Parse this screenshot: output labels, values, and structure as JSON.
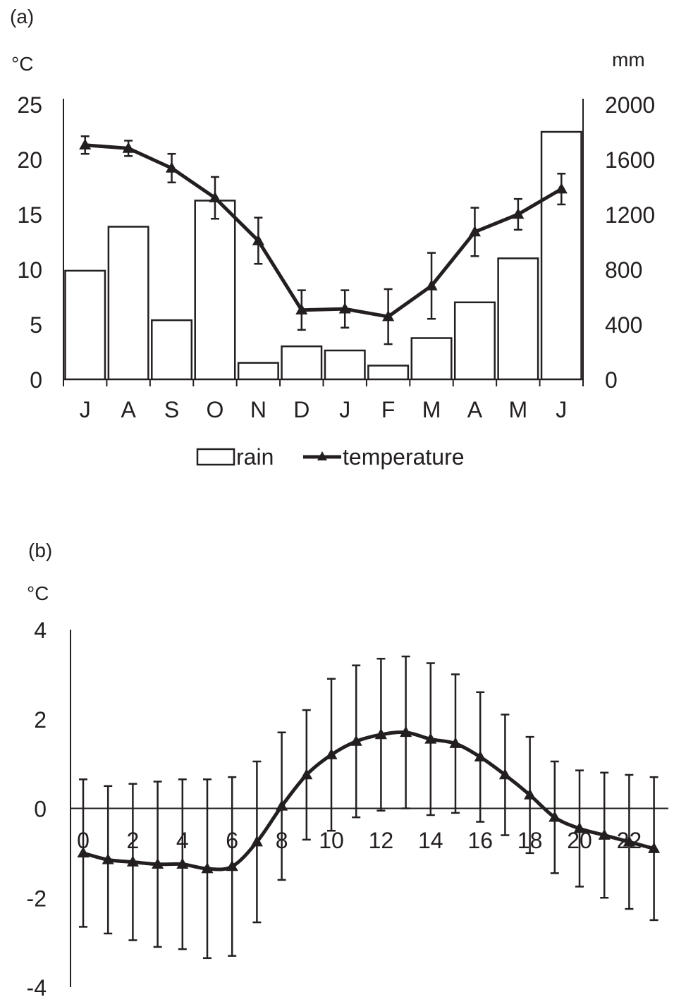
{
  "chart_data": [
    {
      "panel_label": "(a)",
      "type": "bar+line",
      "categories": [
        "J",
        "A",
        "S",
        "O",
        "N",
        "D",
        "J",
        "F",
        "M",
        "A",
        "M",
        "J"
      ],
      "left_axis": {
        "unit": "°C",
        "ticks": [
          "0",
          "5",
          "10",
          "15",
          "20",
          "25"
        ],
        "ylim": [
          0,
          25
        ]
      },
      "right_axis": {
        "unit": "mm",
        "ticks": [
          "0",
          "400",
          "800",
          "1200",
          "1600",
          "2000"
        ],
        "ylim": [
          0,
          2000
        ]
      },
      "series": [
        {
          "name": "rain",
          "kind": "bar",
          "axis": "right",
          "values": [
            790,
            1110,
            430,
            1300,
            120,
            240,
            210,
            100,
            300,
            560,
            880,
            1800
          ]
        },
        {
          "name": "temperature",
          "kind": "line",
          "axis": "left",
          "marker": "triangle",
          "values": [
            21.3,
            21.0,
            19.2,
            16.5,
            12.6,
            6.3,
            6.4,
            5.7,
            8.5,
            13.4,
            15.0,
            17.3
          ],
          "error": [
            0.8,
            0.7,
            1.3,
            1.9,
            2.1,
            1.8,
            1.7,
            2.5,
            3.0,
            2.2,
            1.4,
            1.4
          ]
        }
      ],
      "legend": {
        "placement": "bottom"
      }
    },
    {
      "panel_label": "(b)",
      "type": "line",
      "y_unit": "°C",
      "ylim": [
        -4,
        4
      ],
      "y_ticks": [
        "-4",
        "-2",
        "0",
        "2",
        "4"
      ],
      "x_tick_labels": [
        "0",
        "2",
        "4",
        "6",
        "8",
        "10",
        "12",
        "14",
        "16",
        "18",
        "20",
        "22"
      ],
      "series": [
        {
          "marker": "triangle",
          "x": [
            0,
            1,
            2,
            3,
            4,
            5,
            6,
            7,
            8,
            9,
            10,
            11,
            12,
            13,
            14,
            15,
            16,
            17,
            18,
            19,
            20,
            21,
            22,
            23
          ],
          "values": [
            -1.0,
            -1.15,
            -1.2,
            -1.25,
            -1.25,
            -1.35,
            -1.3,
            -0.75,
            0.05,
            0.75,
            1.2,
            1.5,
            1.65,
            1.7,
            1.55,
            1.45,
            1.15,
            0.75,
            0.3,
            -0.2,
            -0.45,
            -0.6,
            -0.75,
            -0.9
          ],
          "error": [
            1.65,
            1.65,
            1.75,
            1.85,
            1.9,
            2.0,
            2.0,
            1.8,
            1.65,
            1.45,
            1.7,
            1.7,
            1.7,
            1.7,
            1.7,
            1.55,
            1.45,
            1.35,
            1.3,
            1.25,
            1.3,
            1.4,
            1.5,
            1.6
          ]
        }
      ]
    }
  ]
}
